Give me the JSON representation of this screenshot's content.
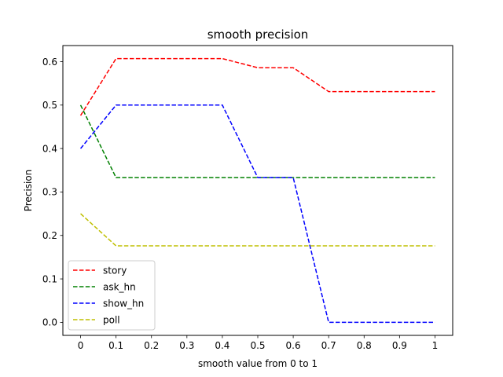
{
  "chart_data": {
    "type": "line",
    "title": "smooth precision",
    "xlabel": "smooth value from 0 to 1",
    "ylabel": "Precision",
    "x": [
      0,
      0.1,
      0.2,
      0.3,
      0.4,
      0.5,
      0.6,
      0.7,
      0.8,
      0.9,
      1
    ],
    "xtick_labels": [
      "0",
      "0.1",
      "0.2",
      "0.3",
      "0.4",
      "0.5",
      "0.6",
      "0.7",
      "0.8",
      "0.9",
      "1"
    ],
    "ytick_values": [
      0.0,
      0.1,
      0.2,
      0.3,
      0.4,
      0.5,
      0.6
    ],
    "ytick_labels": [
      "0.0",
      "0.1",
      "0.2",
      "0.3",
      "0.4",
      "0.5",
      "0.6"
    ],
    "xlim": [
      -0.05,
      1.05
    ],
    "ylim": [
      -0.03,
      0.637
    ],
    "grid": false,
    "legend_position": "lower-left",
    "line_style": "dashed",
    "series": [
      {
        "name": "story",
        "color": "#ff0000",
        "values": [
          0.476,
          0.607,
          0.607,
          0.607,
          0.607,
          0.586,
          0.586,
          0.531,
          0.531,
          0.531,
          0.531
        ]
      },
      {
        "name": "ask_hn",
        "color": "#008000",
        "values": [
          0.5,
          0.333,
          0.333,
          0.333,
          0.333,
          0.333,
          0.333,
          0.333,
          0.333,
          0.333,
          0.333
        ]
      },
      {
        "name": "show_hn",
        "color": "#0000ff",
        "values": [
          0.4,
          0.5,
          0.5,
          0.5,
          0.5,
          0.333,
          0.333,
          0.0,
          0.0,
          0.0,
          0.0
        ]
      },
      {
        "name": "poll",
        "color": "#bfbf00",
        "values": [
          0.25,
          0.176,
          0.176,
          0.176,
          0.176,
          0.176,
          0.176,
          0.176,
          0.176,
          0.176,
          0.176
        ]
      }
    ]
  }
}
